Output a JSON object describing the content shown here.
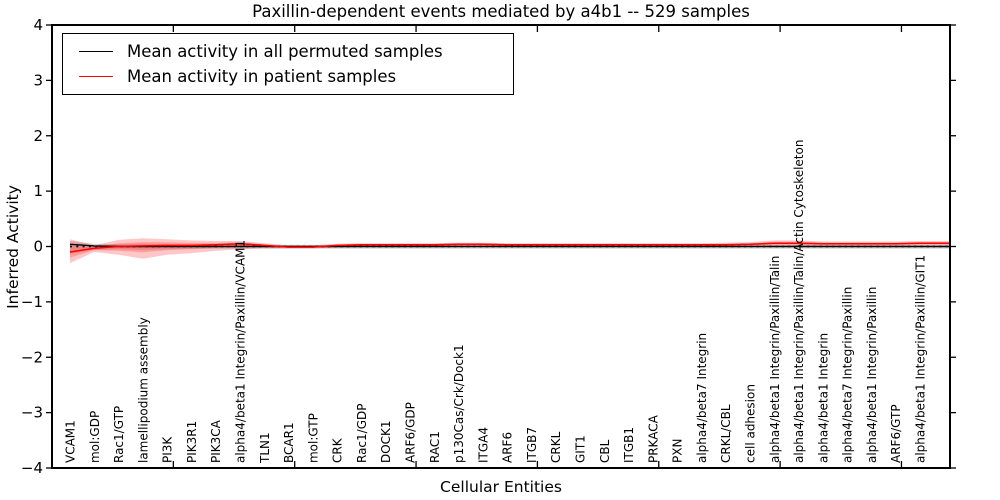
{
  "chart_data": {
    "type": "line",
    "title": "Paxillin-dependent events mediated by a4b1 -- 529 samples",
    "xlabel": "Cellular Entities",
    "ylabel": "Inferred Activity",
    "ylim": [
      -4,
      4
    ],
    "yticks": [
      4,
      3,
      2,
      1,
      0,
      -1,
      -2,
      -3,
      -4
    ],
    "ytick_labels": [
      "4",
      "3",
      "2",
      "1",
      "0",
      "−1",
      "−2",
      "−3",
      "−4"
    ],
    "xtick_grid_values": [
      0,
      5,
      10,
      15,
      20,
      25,
      30,
      35
    ],
    "xlim_grid": [
      0,
      37
    ],
    "grid": false,
    "legend_position": "upper left",
    "categories": [
      "VCAM1",
      "mol:GDP",
      "Rac1/GTP",
      "lamellipodium assembly",
      "PI3K",
      "PIK3R1",
      "PIK3CA",
      "alpha4/beta1 Integrin/Paxillin/VCAM1",
      "TLN1",
      "BCAR1",
      "mol:GTP",
      "CRK",
      "Rac1/GDP",
      "DOCK1",
      "ARF6/GDP",
      "RAC1",
      "p130Cas/Crk/Dock1",
      "ITGA4",
      "ARF6",
      "ITGB7",
      "CRKL",
      "GIT1",
      "CBL",
      "ITGB1",
      "PRKACA",
      "PXN",
      "alpha4/beta7 Integrin",
      "CRKL/CBL",
      "cell adhesion",
      "alpha4/beta1 Integrin/Paxillin/Talin",
      "alpha4/beta1 Integrin/Paxillin/Talin/Actin Cytoskeleton",
      "alpha4/beta1 Integrin",
      "alpha4/beta7 Integrin/Paxillin",
      "alpha4/beta1 Integrin/Paxillin",
      "ARF6/GTP",
      "alpha4/beta1 Integrin/Paxillin/GIT1"
    ],
    "series": [
      {
        "name": "Mean activity in all permuted samples",
        "color": "#000000",
        "values": [
          0.04,
          0.01,
          0.0,
          0.0,
          0.0,
          0.0,
          0.0,
          0.0,
          0.0,
          0.0,
          0.0,
          0.0,
          0.0,
          0.0,
          0.0,
          0.0,
          0.0,
          0.0,
          0.0,
          0.0,
          0.0,
          0.0,
          0.0,
          0.0,
          0.0,
          0.0,
          0.0,
          0.0,
          0.0,
          0.0,
          0.0,
          0.0,
          0.0,
          0.0,
          0.0,
          0.0
        ]
      },
      {
        "name": "Mean activity in patient samples",
        "color": "#ff0000",
        "values": [
          -0.1,
          -0.03,
          0.0,
          0.01,
          0.02,
          0.02,
          0.03,
          0.05,
          0.02,
          -0.01,
          -0.01,
          0.02,
          0.03,
          0.03,
          0.03,
          0.03,
          0.04,
          0.04,
          0.03,
          0.03,
          0.03,
          0.03,
          0.03,
          0.03,
          0.03,
          0.03,
          0.03,
          0.03,
          0.04,
          0.06,
          0.06,
          0.05,
          0.05,
          0.05,
          0.05,
          0.06
        ]
      }
    ],
    "bands": [
      {
        "name": "permuted-band",
        "color": "#808080",
        "opacity": 0.32,
        "upper": [
          0.1,
          0.05,
          0.04,
          0.05,
          0.04,
          0.03,
          0.03,
          0.03,
          0.03,
          0.03,
          0.03,
          0.03,
          0.03,
          0.03,
          0.03,
          0.03,
          0.03,
          0.03,
          0.03,
          0.03,
          0.03,
          0.03,
          0.03,
          0.03,
          0.03,
          0.03,
          0.03,
          0.03,
          0.03,
          0.03,
          0.03,
          0.03,
          0.03,
          0.03,
          0.03,
          0.03
        ],
        "lower": [
          -0.13,
          -0.06,
          -0.05,
          -0.06,
          -0.05,
          -0.04,
          -0.04,
          -0.04,
          -0.04,
          -0.04,
          -0.04,
          -0.04,
          -0.04,
          -0.04,
          -0.04,
          -0.04,
          -0.04,
          -0.04,
          -0.04,
          -0.04,
          -0.04,
          -0.04,
          -0.04,
          -0.04,
          -0.04,
          -0.04,
          -0.04,
          -0.04,
          -0.04,
          -0.04,
          -0.04,
          -0.04,
          -0.04,
          -0.04,
          -0.04,
          -0.04
        ]
      },
      {
        "name": "patient-band",
        "color": "#ff1e1e",
        "opacity": 0.25,
        "upper": [
          0.13,
          0.02,
          0.12,
          0.15,
          0.13,
          0.11,
          0.1,
          0.1,
          0.06,
          0.02,
          0.02,
          0.05,
          0.06,
          0.06,
          0.06,
          0.06,
          0.07,
          0.07,
          0.06,
          0.06,
          0.06,
          0.06,
          0.06,
          0.06,
          0.06,
          0.06,
          0.06,
          0.07,
          0.08,
          0.11,
          0.11,
          0.09,
          0.09,
          0.09,
          0.09,
          0.1
        ],
        "lower": [
          -0.3,
          -0.1,
          -0.15,
          -0.22,
          -0.15,
          -0.12,
          -0.08,
          -0.05,
          -0.03,
          -0.03,
          -0.03,
          -0.02,
          -0.01,
          -0.01,
          -0.01,
          -0.01,
          0.0,
          0.0,
          0.0,
          0.0,
          0.0,
          0.0,
          0.0,
          0.0,
          0.0,
          0.0,
          0.0,
          0.0,
          0.0,
          0.01,
          0.01,
          0.01,
          0.01,
          0.01,
          0.01,
          0.02
        ]
      }
    ],
    "zero_reference_line": 0
  },
  "colors": {
    "axis": "#000000",
    "background": "#ffffff",
    "zero_dotted": "#111111"
  }
}
